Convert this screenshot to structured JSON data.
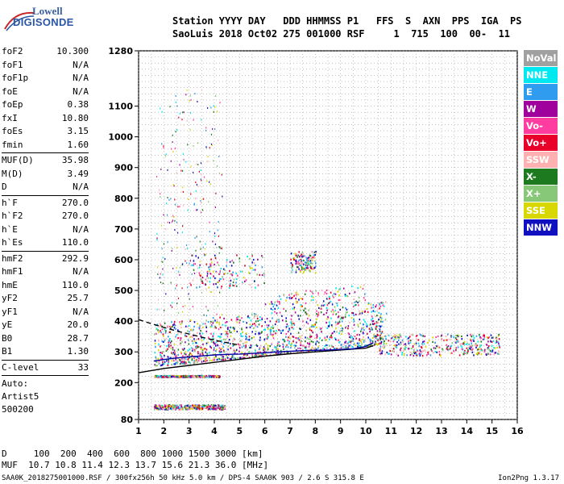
{
  "logo": {
    "line1": "Lowell",
    "line2": "DIGISONDE"
  },
  "header": {
    "line1": "Station YYYY DAY   DDD HHMMSS P1   FFS  S  AXN  PPS  IGA  PS",
    "line2": "SaoLuis 2018 Oct02 275 001000 RSF     1  715  100  00-  11"
  },
  "params": {
    "group1": [
      {
        "k": "foF2",
        "v": "10.300"
      },
      {
        "k": "foF1",
        "v": "N/A"
      },
      {
        "k": "foF1p",
        "v": "N/A"
      },
      {
        "k": "foE",
        "v": "N/A"
      },
      {
        "k": "foEp",
        "v": "0.38"
      },
      {
        "k": "fxI",
        "v": "10.80"
      },
      {
        "k": "foEs",
        "v": "3.15"
      },
      {
        "k": "fmin",
        "v": "1.60"
      }
    ],
    "group2": [
      {
        "k": "MUF(D)",
        "v": "35.98"
      },
      {
        "k": "M(D)",
        "v": "3.49"
      },
      {
        "k": "D",
        "v": "N/A"
      }
    ],
    "group3": [
      {
        "k": "h`F",
        "v": "270.0"
      },
      {
        "k": "h`F2",
        "v": "270.0"
      },
      {
        "k": "h`E",
        "v": "N/A"
      },
      {
        "k": "h`Es",
        "v": "110.0"
      }
    ],
    "group4": [
      {
        "k": "hmF2",
        "v": "292.9"
      },
      {
        "k": "hmF1",
        "v": "N/A"
      },
      {
        "k": "hmE",
        "v": "110.0"
      },
      {
        "k": "yF2",
        "v": "25.7"
      },
      {
        "k": "yF1",
        "v": "N/A"
      },
      {
        "k": "yE",
        "v": "20.0"
      },
      {
        "k": "B0",
        "v": "28.7"
      },
      {
        "k": "B1",
        "v": "1.30"
      }
    ],
    "group5": [
      {
        "k": "C-level",
        "v": "33"
      }
    ],
    "auto": [
      "Auto:",
      "Artist5",
      "500200"
    ]
  },
  "legend": [
    {
      "label": "NoVal",
      "bg": "#a0a0a0",
      "fg": "#ffffff"
    },
    {
      "label": "NNE",
      "bg": "#00e8f0",
      "fg": "#ffffff"
    },
    {
      "label": "E",
      "bg": "#2f9cf0",
      "fg": "#ffffff"
    },
    {
      "label": "W",
      "bg": "#a0009c",
      "fg": "#ffffff"
    },
    {
      "label": "Vo-",
      "bg": "#ff3ca0",
      "fg": "#ffffff"
    },
    {
      "label": "Vo+",
      "bg": "#e8002a",
      "fg": "#ffffff"
    },
    {
      "label": "SSW",
      "bg": "#ffb0b0",
      "fg": "#ffffff"
    },
    {
      "label": "X-",
      "bg": "#1e7a1e",
      "fg": "#ffffff"
    },
    {
      "label": "X+",
      "bg": "#86c878",
      "fg": "#ffffff"
    },
    {
      "label": "SSE",
      "bg": "#d8d800",
      "fg": "#ffffff"
    },
    {
      "label": "NNW",
      "bg": "#1010c0",
      "fg": "#ffffff"
    }
  ],
  "footer": {
    "line1": "D     100  200  400  600  800 1000 1500 3000 [km]",
    "line2": "MUF  10.7 10.8 11.4 12.3 13.7 15.6 21.3 36.0 [MHz]",
    "line3": "SAA0K_2018275001000.RSF / 300fx256h 50 kHz 5.0 km / DPS-4 SAA0K 903 / 2.6 S 315.8 E",
    "version": "Ion2Png 1.3.17"
  },
  "chart_data": {
    "type": "scatter",
    "xlim": [
      1,
      16
    ],
    "ylim": [
      80,
      1280
    ],
    "x_ticks": [
      1,
      2,
      3,
      4,
      5,
      6,
      7,
      8,
      9,
      10,
      11,
      12,
      13,
      14,
      15,
      16
    ],
    "y_ticks": [
      80,
      200,
      300,
      400,
      500,
      600,
      700,
      800,
      900,
      1000,
      1100,
      1280
    ],
    "grid": true,
    "legend_placement": "right",
    "curves": [
      {
        "style": "solid",
        "color": "#000000",
        "x": [
          1.0,
          2.0,
          3.0,
          4.0,
          5.0,
          6.0,
          7.0,
          8.0,
          9.0,
          10.0,
          10.3
        ],
        "y": [
          232,
          246,
          256,
          266,
          276,
          286,
          294,
          300,
          306,
          312,
          320
        ]
      },
      {
        "style": "dashed",
        "color": "#000000",
        "x": [
          1.0,
          1.5,
          2.0,
          2.5,
          3.0,
          3.5,
          4.0,
          4.5,
          5.0
        ],
        "y": [
          405,
          392,
          380,
          368,
          358,
          348,
          338,
          330,
          322
        ]
      },
      {
        "style": "solid",
        "color": "#0000a0",
        "x": [
          1.6,
          2.0,
          2.5,
          3.0,
          3.5,
          4.0,
          4.5,
          5.0,
          5.5,
          6.0,
          6.5,
          7.0,
          7.5,
          8.0,
          8.5,
          9.0,
          9.5,
          10.0,
          10.3
        ],
        "y": [
          270,
          275,
          280,
          284,
          287,
          290,
          292,
          293,
          295,
          297,
          300,
          302,
          304,
          305,
          306,
          308,
          310,
          318,
          330
        ]
      }
    ],
    "point_clusters": [
      {
        "name": "F2 trace",
        "x": [
          1.6,
          10.8
        ],
        "y": [
          255,
          440
        ],
        "density": "high"
      },
      {
        "name": "F2 spread",
        "x": [
          10.5,
          15.3
        ],
        "y": [
          290,
          360
        ],
        "density": "medium"
      },
      {
        "name": "multiple reflections",
        "x": [
          3,
          6
        ],
        "y": [
          510,
          620
        ],
        "density": "low"
      },
      {
        "name": "multiple reflections 2",
        "x": [
          7,
          8
        ],
        "y": [
          560,
          630
        ],
        "density": "low"
      },
      {
        "name": "Es",
        "x": [
          1.6,
          4.2
        ],
        "y": [
          220,
          225
        ],
        "density": "medium"
      },
      {
        "name": "low band",
        "x": [
          1.6,
          4.4
        ],
        "y": [
          115,
          130
        ],
        "density": "medium"
      }
    ]
  }
}
